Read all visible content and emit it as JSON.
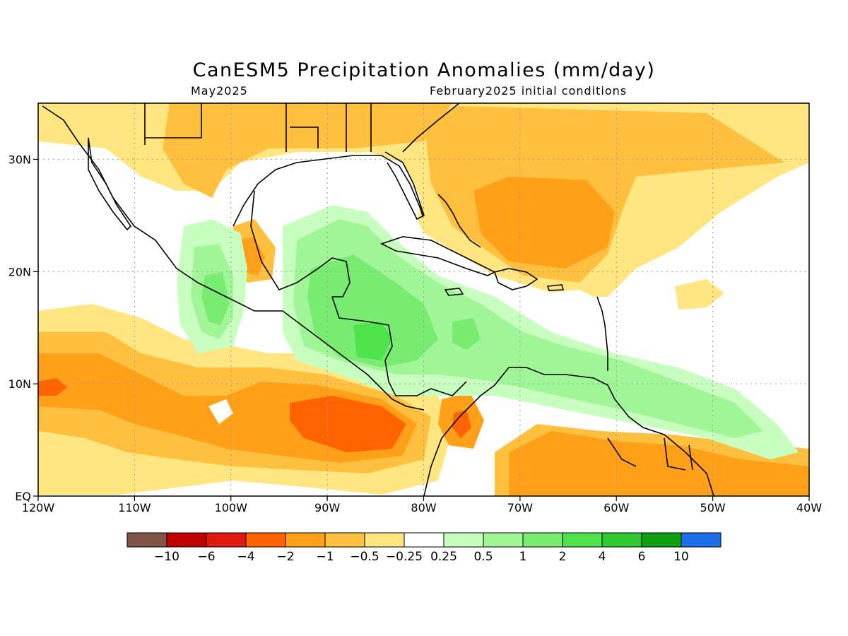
{
  "title": "CanESM5 Precipitation Anomalies (mm/day)",
  "subtitle_left": "May2025",
  "subtitle_right": "February2025 initial conditions",
  "map": {
    "lon_range": [
      -120,
      -40
    ],
    "lat_range": [
      0,
      35
    ],
    "lon_ticks": [
      {
        "value": -120,
        "label": "120W"
      },
      {
        "value": -110,
        "label": "110W"
      },
      {
        "value": -100,
        "label": "100W"
      },
      {
        "value": -90,
        "label": "90W"
      },
      {
        "value": -80,
        "label": "80W"
      },
      {
        "value": -70,
        "label": "70W"
      },
      {
        "value": -60,
        "label": "60W"
      },
      {
        "value": -50,
        "label": "50W"
      },
      {
        "value": -40,
        "label": "40W"
      }
    ],
    "lat_ticks": [
      {
        "value": 0,
        "label": "EQ"
      },
      {
        "value": 10,
        "label": "10N"
      },
      {
        "value": 20,
        "label": "20N"
      },
      {
        "value": 30,
        "label": "30N"
      }
    ]
  },
  "colorbar": {
    "colors": [
      "#7f5548",
      "#c00000",
      "#e01a10",
      "#ff6400",
      "#ffa018",
      "#ffc040",
      "#ffe680",
      "#ffffff",
      "#c8ffc0",
      "#a0f596",
      "#78ec70",
      "#4ee24c",
      "#30c830",
      "#12a012",
      "#1e6ee8"
    ],
    "labels": [
      "−10",
      "−6",
      "−4",
      "−2",
      "−1",
      "−0.5",
      "−0.25",
      "0.25",
      "0.5",
      "1",
      "2",
      "4",
      "6",
      "10"
    ]
  },
  "colors": {
    "gridline": "#999999",
    "coast": "#000000"
  }
}
